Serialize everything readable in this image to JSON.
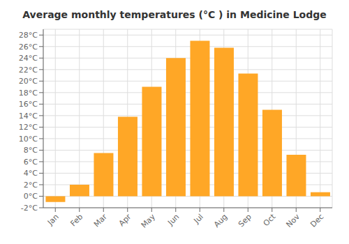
{
  "chart_data": {
    "type": "bar",
    "title": "Average monthly temperatures (°C ) in Medicine Lodge",
    "categories": [
      "Jan",
      "Feb",
      "Mar",
      "Apr",
      "May",
      "Jun",
      "Jul",
      "Aug",
      "Sep",
      "Oct",
      "Nov",
      "Dec"
    ],
    "values": [
      -1.0,
      2.0,
      7.5,
      13.8,
      19.0,
      24.0,
      27.0,
      25.8,
      21.3,
      15.0,
      7.2,
      0.7
    ],
    "color": "#FFA726",
    "ylim": [
      -2,
      29
    ],
    "yticks": [
      {
        "value": -2,
        "label": "-2°C"
      },
      {
        "value": 0,
        "label": "0°C"
      },
      {
        "value": 2,
        "label": "2°C"
      },
      {
        "value": 4,
        "label": "4°C"
      },
      {
        "value": 6,
        "label": "6°C"
      },
      {
        "value": 8,
        "label": "8°C"
      },
      {
        "value": 10,
        "label": "10°C"
      },
      {
        "value": 12,
        "label": "12°C"
      },
      {
        "value": 14,
        "label": "14°C"
      },
      {
        "value": 16,
        "label": "16°C"
      },
      {
        "value": 18,
        "label": "18°C"
      },
      {
        "value": 20,
        "label": "20°C"
      },
      {
        "value": 22,
        "label": "22°C"
      },
      {
        "value": 24,
        "label": "24°C"
      },
      {
        "value": 26,
        "label": "26°C"
      },
      {
        "value": 28,
        "label": "28°C"
      }
    ],
    "grid": true
  }
}
